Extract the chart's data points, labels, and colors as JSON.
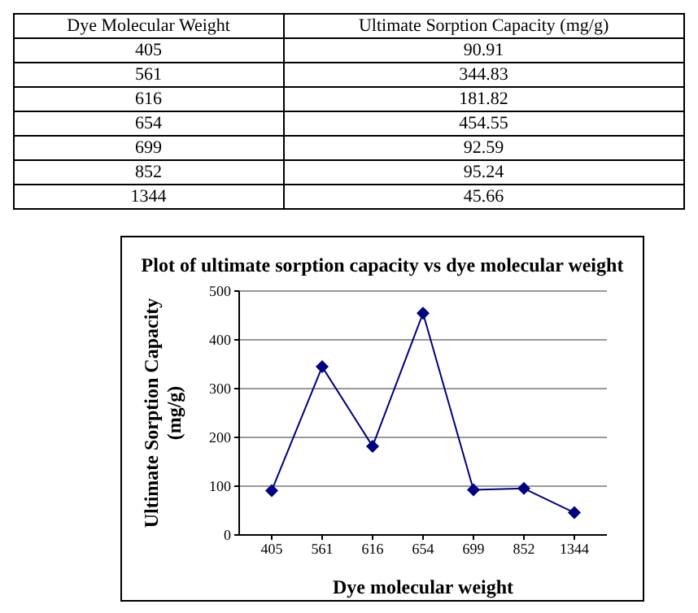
{
  "chart_data": [
    {
      "type": "other",
      "annotations": [
        "Dye Molecular Weight",
        "Ultimate Sorption Capacity (mg/g)"
      ],
      "categories": [
        "405",
        "561",
        "616",
        "654",
        "699",
        "852",
        "1344"
      ],
      "value_labels": [
        "90.91",
        "344.83",
        "181.82",
        "454.55",
        "92.59",
        "95.24",
        "45.66"
      ]
    },
    {
      "type": "line",
      "title": "Plot of ultimate sorption capacity vs dye molecular weight",
      "xlabel": "Dye molecular weight",
      "ylabel": "Ultimate Sorption Capacity (mg/g)",
      "categories": [
        "405",
        "561",
        "616",
        "654",
        "699",
        "852",
        "1344"
      ],
      "series": [
        {
          "color": "#000080",
          "values": [
            90.91,
            344.83,
            181.82,
            454.55,
            92.59,
            95.24,
            45.66
          ]
        }
      ],
      "ylim": [
        0,
        500
      ],
      "yticks": [
        0,
        100,
        200,
        300,
        400,
        500
      ],
      "grid": "y",
      "marker": "diamond",
      "line_style": "solid",
      "legend": false
    }
  ]
}
